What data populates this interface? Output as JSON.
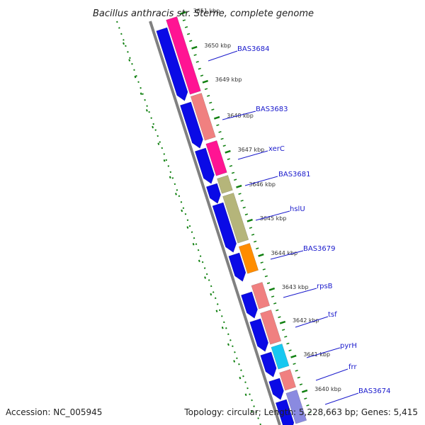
{
  "title": "Bacillus anthracis str. Sterne, complete genome",
  "footer": {
    "accession": "Accession: NC_005945",
    "topology": "Topology: circular; Length: 5,228,663 bp; Genes: 5,415"
  },
  "ticks": [
    {
      "label": "3651 kbp"
    },
    {
      "label": "3650 kbp"
    },
    {
      "label": "3649 kbp"
    },
    {
      "label": "3648 kbp"
    },
    {
      "label": "3647 kbp"
    },
    {
      "label": "3646 kbp"
    },
    {
      "label": "3645 kbp"
    },
    {
      "label": "3644 kbp"
    },
    {
      "label": "3643 kbp"
    },
    {
      "label": "3642 kbp"
    },
    {
      "label": "3641 kbp"
    },
    {
      "label": "3640 kbp"
    }
  ],
  "gene_labels": [
    {
      "name": "BAS3684",
      "color": "#1a1acc"
    },
    {
      "name": "BAS3683",
      "color": "#1a1acc"
    },
    {
      "name": "xerC",
      "color": "#1a1acc"
    },
    {
      "name": "BAS3681",
      "color": "#1a1acc"
    },
    {
      "name": "hslU",
      "color": "#1a1acc"
    },
    {
      "name": "BAS3679",
      "color": "#1a1acc"
    },
    {
      "name": "rpsB",
      "color": "#1a1acc"
    },
    {
      "name": "tsf",
      "color": "#1a1acc"
    },
    {
      "name": "pyrH",
      "color": "#1a1acc"
    },
    {
      "name": "frr",
      "color": "#1a1acc"
    },
    {
      "name": "BAS3674",
      "color": "#1a1acc"
    }
  ],
  "colors": {
    "cds_blue": "#0a0ae6",
    "magenta": "#ff1493",
    "salmon": "#f08080",
    "olive": "#b5b57a",
    "orange": "#ff8c00",
    "cyan": "#18c8f0",
    "lavender": "#8a8ae0",
    "backbone": "#808080",
    "gc_green": "#108010"
  }
}
